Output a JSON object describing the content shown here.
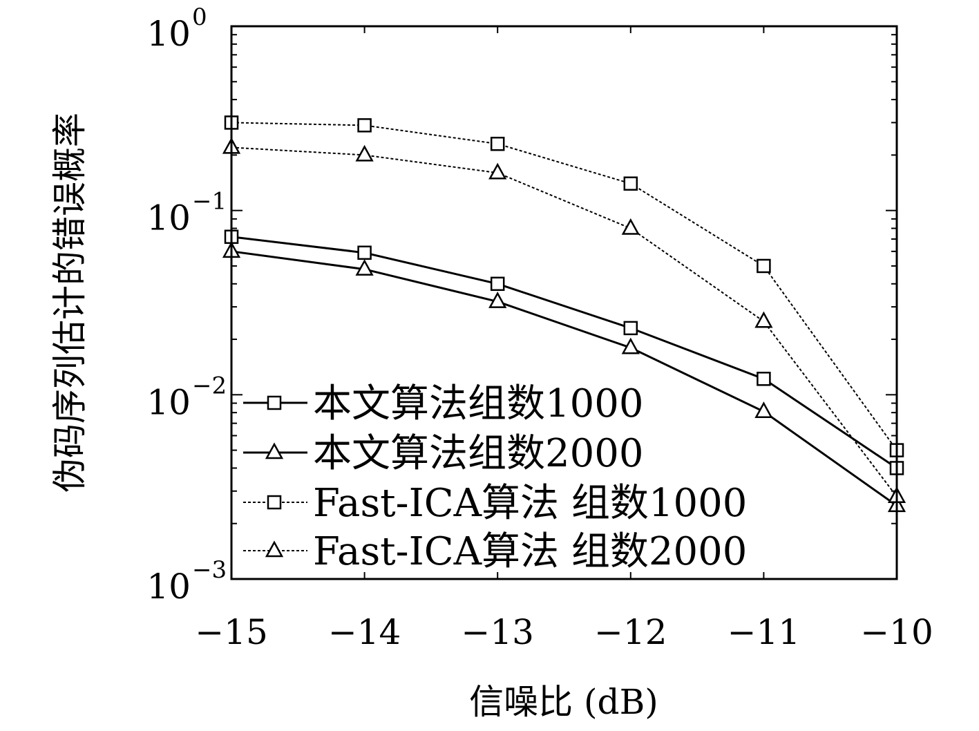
{
  "chart_data": {
    "type": "line",
    "xlabel": "信噪比 (dB)",
    "ylabel": "伪码序列估计的错误概率",
    "x": [
      -15,
      -14,
      -13,
      -12,
      -11,
      -10
    ],
    "xlim": [
      -15,
      -10
    ],
    "ylim": [
      0.001,
      1
    ],
    "y_scale": "log",
    "x_ticks": [
      -15,
      -14,
      -13,
      -12,
      -11,
      -10
    ],
    "x_tick_labels": [
      "−15",
      "−14",
      "−13",
      "−12",
      "−11",
      "−10"
    ],
    "y_ticks": [
      {
        "value": 1,
        "base": "10",
        "exp": "0"
      },
      {
        "value": 0.1,
        "base": "10",
        "exp": "−1"
      },
      {
        "value": 0.01,
        "base": "10",
        "exp": "−2"
      },
      {
        "value": 0.001,
        "base": "10",
        "exp": "−3"
      }
    ],
    "grid": false,
    "legend_position": "bottom-left",
    "series": [
      {
        "name": "本文算法组数1000",
        "marker": "square",
        "line": "solid",
        "values": [
          0.072,
          0.059,
          0.04,
          0.023,
          0.0122,
          0.004
        ]
      },
      {
        "name": "本文算法组数2000",
        "marker": "triangle",
        "line": "solid",
        "values": [
          0.06,
          0.048,
          0.032,
          0.018,
          0.0081,
          0.0025
        ]
      },
      {
        "name": "Fast-ICA算法 组数1000",
        "marker": "square",
        "line": "dotted",
        "values": [
          0.3,
          0.29,
          0.23,
          0.14,
          0.05,
          0.005
        ]
      },
      {
        "name": "Fast-ICA算法 组数2000",
        "marker": "triangle",
        "line": "dotted",
        "values": [
          0.22,
          0.2,
          0.16,
          0.08,
          0.025,
          0.0028
        ]
      }
    ]
  }
}
